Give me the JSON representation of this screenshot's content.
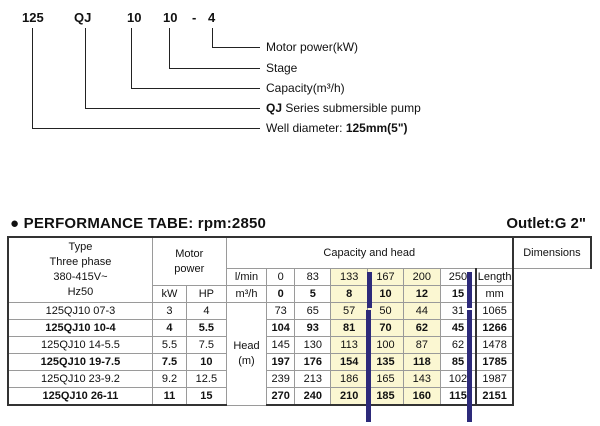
{
  "model_code": {
    "parts": [
      "125",
      "QJ",
      "10",
      "10",
      "-",
      "4"
    ],
    "labels": {
      "motor_power": "Motor power(kW)",
      "stage": "Stage",
      "capacity": "Capacity(m³/h)",
      "series_prefix": "QJ",
      "series_rest": " Series submersible pump",
      "well_prefix": "Well diameter: ",
      "well_value": "125mm(5\")"
    }
  },
  "performance": {
    "title": "● PERFORMANCE TABE: rpm:2850",
    "outlet": "Outlet:G 2\"",
    "headers": {
      "type": [
        "Type",
        "Three phase",
        "380-415V~",
        "Hz50"
      ],
      "motor_power": [
        "Motor",
        "power"
      ],
      "kw": "kW",
      "hp": "HP",
      "capacity_and_head": "Capacity and head",
      "lmin_unit": "l/min",
      "m3h_unit": "m³/h",
      "lmin_values": [
        "0",
        "83",
        "133",
        "167",
        "200",
        "250"
      ],
      "m3h_values": [
        "0",
        "5",
        "8",
        "10",
        "12",
        "15"
      ],
      "head_label": [
        "Head",
        "(m)"
      ],
      "dimensions": "Dimensions",
      "length": "Length",
      "mm": "mm"
    },
    "rows": [
      {
        "type": "125QJ10 07-3",
        "kw": "3",
        "hp": "4",
        "heads": [
          "73",
          "65",
          "57",
          "50",
          "44",
          "31"
        ],
        "length": "1065",
        "bold": false
      },
      {
        "type": "125QJ10 10-4",
        "kw": "4",
        "hp": "5.5",
        "heads": [
          "104",
          "93",
          "81",
          "70",
          "62",
          "45"
        ],
        "length": "1266",
        "bold": true
      },
      {
        "type": "125QJ10 14-5.5",
        "kw": "5.5",
        "hp": "7.5",
        "heads": [
          "145",
          "130",
          "113",
          "100",
          "87",
          "62"
        ],
        "length": "1478",
        "bold": false
      },
      {
        "type": "125QJ10 19-7.5",
        "kw": "7.5",
        "hp": "10",
        "heads": [
          "197",
          "176",
          "154",
          "135",
          "118",
          "85"
        ],
        "length": "1785",
        "bold": true
      },
      {
        "type": "125QJ10 23-9.2",
        "kw": "9.2",
        "hp": "12.5",
        "heads": [
          "239",
          "213",
          "186",
          "165",
          "143",
          "102"
        ],
        "length": "1987",
        "bold": false
      },
      {
        "type": "125QJ10 26-11",
        "kw": "11",
        "hp": "15",
        "heads": [
          "270",
          "240",
          "210",
          "185",
          "160",
          "115"
        ],
        "length": "2151",
        "bold": true
      }
    ],
    "colors": {
      "highlight": "#fbf7d2",
      "marker": "#2d2a7a"
    }
  }
}
